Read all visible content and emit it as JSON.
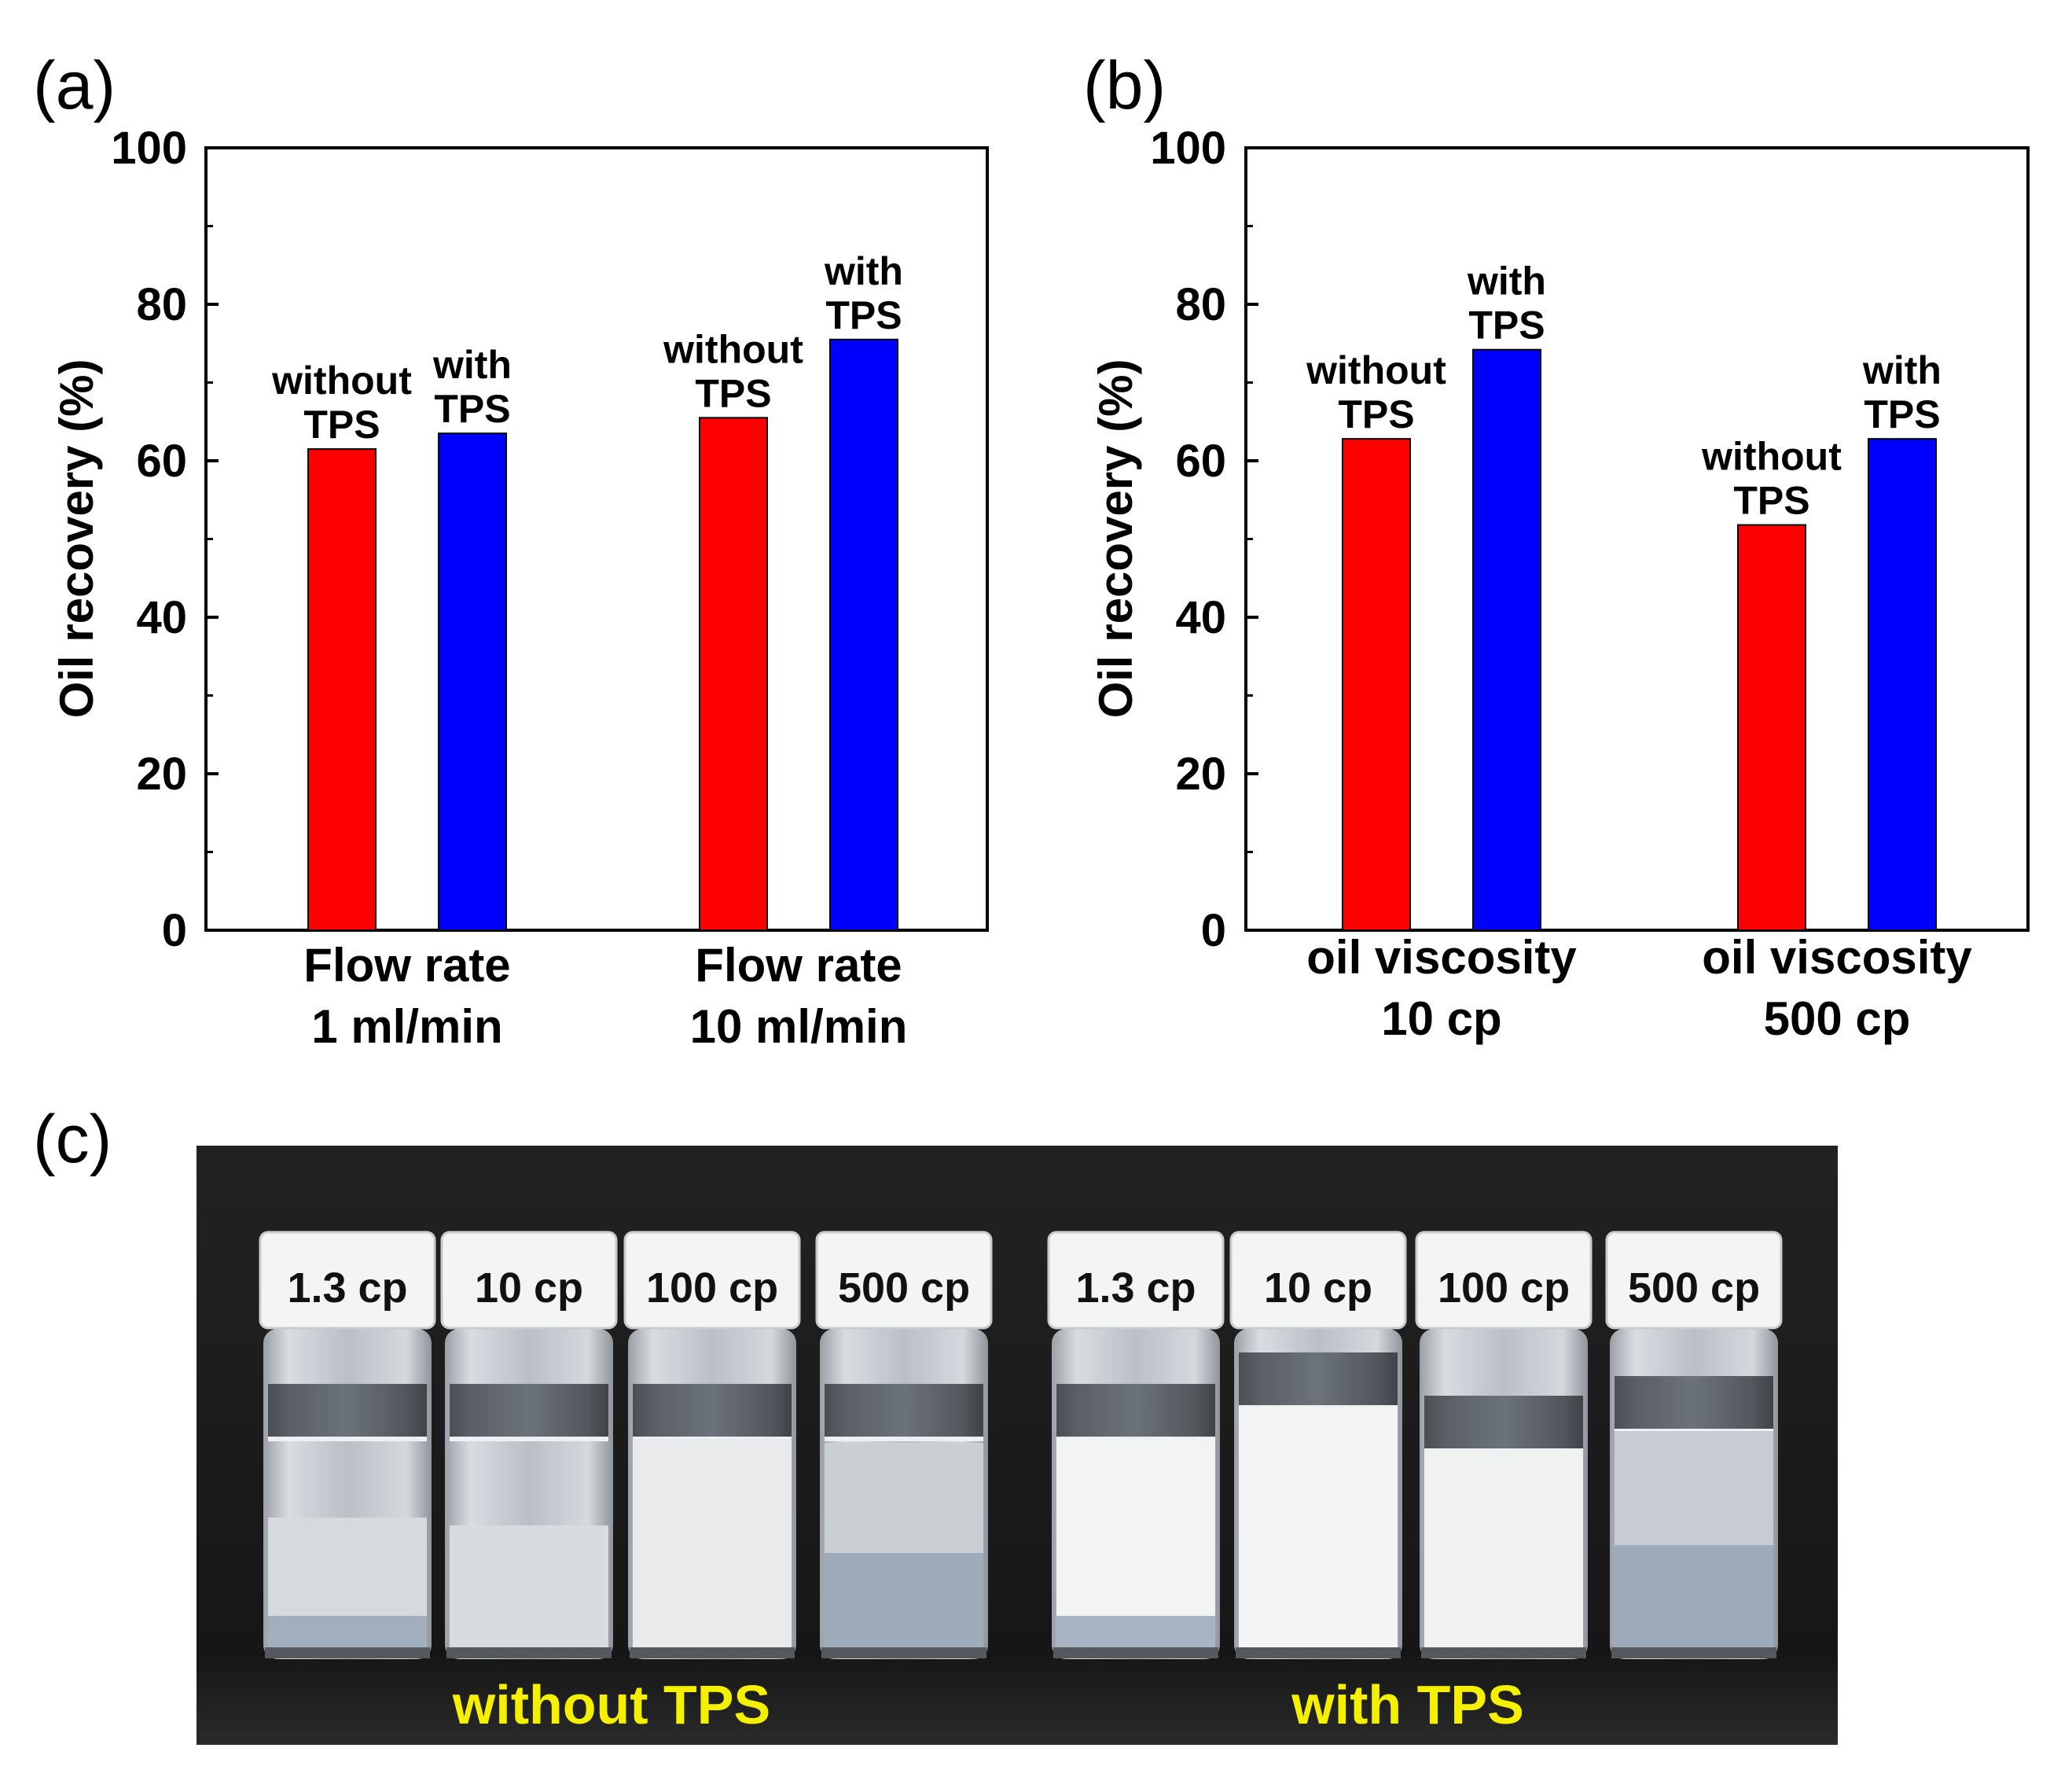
{
  "panels": {
    "a": "(a)",
    "b": "(b)",
    "c": "(c)"
  },
  "colors": {
    "without": "#ff0000",
    "with": "#0000ff"
  },
  "chart_data": [
    {
      "type": "bar",
      "title": "",
      "ylabel": "Oil recovery (%)",
      "xlabel": "",
      "ylim": [
        0,
        100
      ],
      "yticks": [
        0,
        20,
        40,
        60,
        80,
        100
      ],
      "categories": [
        [
          "Flow rate",
          "1 ml/min"
        ],
        [
          "Flow rate",
          "10 ml/min"
        ]
      ],
      "series": [
        {
          "name": "without TPS",
          "label_lines": [
            "without",
            "TPS"
          ],
          "color": "#ff0000",
          "values": [
            61.5,
            65.5
          ]
        },
        {
          "name": "with TPS",
          "label_lines": [
            "with",
            "TPS"
          ],
          "color": "#0000ff",
          "values": [
            63.5,
            75.5
          ]
        }
      ]
    },
    {
      "type": "bar",
      "title": "",
      "ylabel": "Oil recovery (%)",
      "xlabel": "",
      "ylim": [
        0,
        100
      ],
      "yticks": [
        0,
        20,
        40,
        60,
        80,
        100
      ],
      "categories": [
        [
          "oil viscosity",
          "10 cp"
        ],
        [
          "oil viscosity",
          "500 cp"
        ]
      ],
      "series": [
        {
          "name": "without TPS",
          "label_lines": [
            "without",
            "TPS"
          ],
          "color": "#ff0000",
          "values": [
            62.8,
            51.8
          ]
        },
        {
          "name": "with TPS",
          "label_lines": [
            "with",
            "TPS"
          ],
          "color": "#0000ff",
          "values": [
            74.2,
            62.8
          ]
        }
      ]
    }
  ],
  "photo": {
    "vials": [
      "1.3 cp",
      "10 cp",
      "100 cp",
      "500 cp",
      "1.3 cp",
      "10 cp",
      "100 cp",
      "500 cp"
    ],
    "groups": [
      "without TPS",
      "with TPS"
    ]
  }
}
